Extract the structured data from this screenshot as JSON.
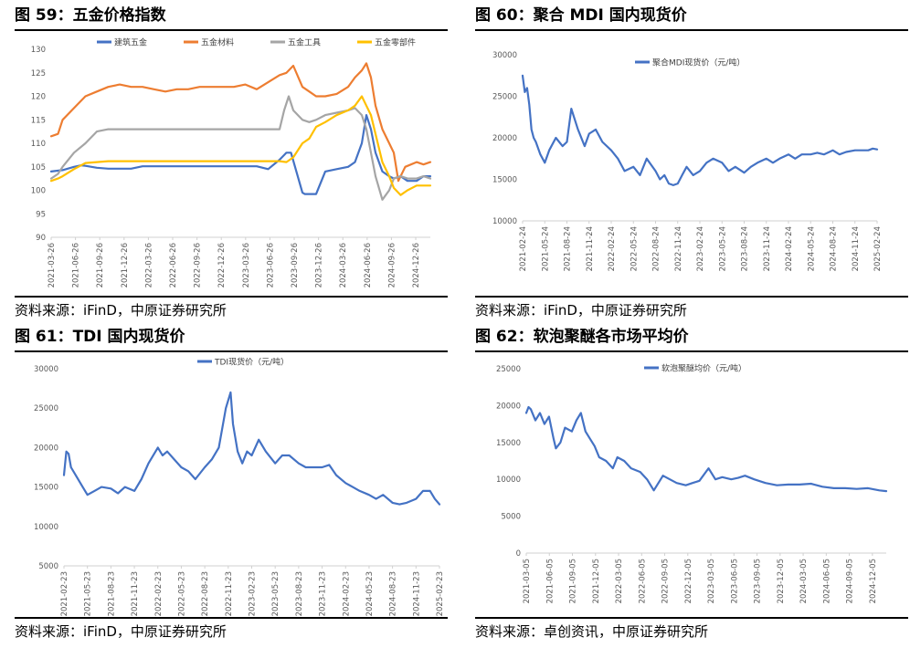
{
  "panels": [
    {
      "title": "图 59：五金价格指数",
      "source": "资料来源：iFinD，中原证券研究所"
    },
    {
      "title": "图 60：聚合 MDI 国内现货价",
      "source": "资料来源：iFinD，中原证券研究所"
    },
    {
      "title": "图 61：TDI 国内现货价",
      "source": "资料来源：iFinD，中原证券研究所"
    },
    {
      "title": "图 62：软泡聚醚各市场平均价",
      "source": "资料来源：卓创资讯，中原证券研究所"
    }
  ],
  "chart_data": [
    {
      "type": "line",
      "ylim": [
        90,
        130
      ],
      "yticks": [
        90,
        95,
        100,
        105,
        110,
        115,
        120,
        125,
        130
      ],
      "x_tick_labels": [
        "2021-03-26",
        "2021-06-26",
        "2021-09-26",
        "2021-12-26",
        "2022-03-26",
        "2022-06-26",
        "2022-09-26",
        "2022-12-26",
        "2023-03-26",
        "2023-06-26",
        "2023-09-26",
        "2023-12-26",
        "2024-03-26",
        "2024-06-26",
        "2024-09-26",
        "2024-12-26"
      ],
      "x_range": [
        0,
        16.6
      ],
      "legend_position": "top",
      "grid": false,
      "series": [
        {
          "name": "建筑五金",
          "color": "#4472C4",
          "x": [
            0,
            0.5,
            1,
            1.3,
            1.5,
            2,
            2.5,
            3,
            3.5,
            4,
            4.5,
            5,
            5.5,
            6,
            6.5,
            7,
            7.5,
            8,
            8.5,
            9,
            9.5,
            10,
            10.2,
            10.3,
            10.5,
            11,
            11.1,
            11.3,
            11.6,
            12,
            12.5,
            13,
            13.3,
            13.6,
            13.8,
            14,
            14.2,
            14.5,
            14.8,
            15,
            15.3,
            15.6,
            16,
            16.3,
            16.6
          ],
          "y": [
            104,
            104.3,
            105,
            105.3,
            105.2,
            104.8,
            104.6,
            104.6,
            104.6,
            105.1,
            105.1,
            105.1,
            105.1,
            105.1,
            105.1,
            105.1,
            105.1,
            105.1,
            105.1,
            105.1,
            104.5,
            106.5,
            107.5,
            108,
            108,
            99.5,
            99.2,
            99.2,
            99.2,
            104,
            104.5,
            105,
            106,
            110,
            116,
            113,
            108,
            104,
            103,
            102.5,
            103,
            102,
            102,
            103,
            103
          ]
        },
        {
          "name": "五金材料",
          "color": "#ED7D31",
          "x": [
            0,
            0.3,
            0.5,
            1,
            1.5,
            2,
            2.5,
            3,
            3.5,
            4,
            4.5,
            5,
            5.5,
            6,
            6.5,
            7,
            7.5,
            8,
            8.5,
            9,
            9.5,
            10,
            10.3,
            10.6,
            11,
            11.3,
            11.6,
            12,
            12.5,
            13,
            13.3,
            13.6,
            13.8,
            14,
            14.2,
            14.5,
            14.8,
            15,
            15.2,
            15.5,
            16,
            16.3,
            16.6
          ],
          "y": [
            111.5,
            112,
            115,
            117.5,
            120,
            121,
            122,
            122.5,
            122,
            122,
            121.5,
            121,
            121.5,
            121.5,
            122,
            122,
            122,
            122,
            122.5,
            121.5,
            123,
            124.5,
            125,
            126.5,
            122,
            121,
            120,
            120,
            120.5,
            122,
            124,
            125.5,
            127,
            124,
            118,
            113,
            110,
            108,
            102,
            105,
            106,
            105.5,
            106
          ]
        },
        {
          "name": "五金工具",
          "color": "#A5A5A5",
          "x": [
            0,
            0.3,
            0.5,
            1,
            1.5,
            2,
            2.5,
            3,
            3.5,
            4,
            4.5,
            5,
            5.5,
            6,
            6.5,
            7,
            7.5,
            8,
            8.5,
            9,
            9.5,
            10,
            10.2,
            10.4,
            10.6,
            11,
            11.3,
            11.6,
            12,
            12.5,
            13,
            13.3,
            13.6,
            13.8,
            14,
            14.2,
            14.5,
            14.8,
            15,
            15.3,
            15.6,
            16,
            16.3,
            16.6
          ],
          "y": [
            102.5,
            103.5,
            105,
            108,
            110,
            112.5,
            113,
            113,
            113,
            113,
            113,
            113,
            113,
            113,
            113,
            113,
            113,
            113,
            113,
            113,
            113,
            113,
            117,
            120,
            117,
            115,
            114.5,
            115,
            116,
            116.5,
            117,
            117.5,
            116,
            113,
            108,
            103,
            98,
            100,
            102.5,
            103,
            102.5,
            102.5,
            103,
            102.5
          ]
        },
        {
          "name": "五金零部件",
          "color": "#FFC000",
          "x": [
            0,
            0.3,
            0.5,
            1,
            1.5,
            2,
            2.5,
            3,
            3.5,
            4,
            4.5,
            5,
            5.5,
            6,
            6.5,
            7,
            7.5,
            8,
            8.5,
            9,
            9.5,
            10,
            10.3,
            10.6,
            11,
            11.3,
            11.6,
            12,
            12.5,
            13,
            13.3,
            13.6,
            13.8,
            14,
            14.2,
            14.5,
            14.8,
            15,
            15.3,
            15.6,
            16,
            16.3,
            16.6
          ],
          "y": [
            102,
            102.5,
            103,
            104.5,
            105.8,
            106,
            106.2,
            106.2,
            106.2,
            106.2,
            106.2,
            106.2,
            106.2,
            106.2,
            106.2,
            106.2,
            106.2,
            106.2,
            106.2,
            106.2,
            106.2,
            106.2,
            106,
            107,
            110,
            111,
            113.5,
            114.5,
            116,
            117,
            118,
            120,
            118,
            116,
            112,
            106,
            103,
            100.5,
            99,
            100,
            101,
            101,
            101
          ]
        }
      ]
    },
    {
      "type": "line",
      "ylim": [
        10000,
        30000
      ],
      "yticks": [
        10000,
        15000,
        20000,
        25000,
        30000
      ],
      "x_tick_labels": [
        "2021-02-24",
        "2021-05-24",
        "2021-08-24",
        "2021-11-24",
        "2022-02-24",
        "2022-05-24",
        "2022-08-24",
        "2022-11-24",
        "2023-02-24",
        "2023-05-24",
        "2023-08-24",
        "2023-11-24",
        "2024-02-24",
        "2024-05-24",
        "2024-08-24",
        "2024-11-24",
        "2025-02-24"
      ],
      "x_range": [
        0,
        16
      ],
      "legend_position": "top",
      "grid": false,
      "series": [
        {
          "name": "聚合MDI现货价（元/吨）",
          "color": "#4472C4",
          "x": [
            0,
            0.1,
            0.2,
            0.3,
            0.4,
            0.5,
            0.6,
            0.8,
            1,
            1.2,
            1.5,
            1.8,
            2,
            2.2,
            2.5,
            2.8,
            3,
            3.3,
            3.6,
            4,
            4.3,
            4.6,
            5,
            5.3,
            5.6,
            6,
            6.2,
            6.4,
            6.6,
            6.8,
            7,
            7.2,
            7.4,
            7.7,
            8,
            8.3,
            8.6,
            9,
            9.3,
            9.6,
            10,
            10.3,
            10.6,
            11,
            11.3,
            11.6,
            12,
            12.3,
            12.6,
            13,
            13.3,
            13.6,
            14,
            14.3,
            14.6,
            15,
            15.3,
            15.6,
            15.8,
            16
          ],
          "y": [
            27500,
            25500,
            26000,
            24000,
            21000,
            20000,
            19500,
            18000,
            17000,
            18500,
            20000,
            19000,
            19500,
            23500,
            21000,
            19000,
            20500,
            21000,
            19500,
            18500,
            17500,
            16000,
            16500,
            15500,
            17500,
            16000,
            15000,
            15500,
            14500,
            14300,
            14500,
            15500,
            16500,
            15500,
            16000,
            17000,
            17500,
            17000,
            16000,
            16500,
            15800,
            16500,
            17000,
            17500,
            17000,
            17500,
            18000,
            17500,
            18000,
            18000,
            18200,
            18000,
            18500,
            18000,
            18300,
            18500,
            18500,
            18500,
            18700,
            18600
          ]
        }
      ]
    },
    {
      "type": "line",
      "ylim": [
        5000,
        30000
      ],
      "yticks": [
        5000,
        10000,
        15000,
        20000,
        25000,
        30000
      ],
      "x_tick_labels": [
        "2021-02-23",
        "2021-05-23",
        "2021-08-23",
        "2021-11-23",
        "2022-02-23",
        "2022-05-23",
        "2022-08-23",
        "2022-11-23",
        "2023-02-23",
        "2023-05-23",
        "2023-08-23",
        "2023-11-23",
        "2024-02-23",
        "2024-05-23",
        "2024-08-23",
        "2024-11-23",
        "2025-02-23"
      ],
      "x_range": [
        0,
        16
      ],
      "legend_position": "top",
      "grid": false,
      "series": [
        {
          "name": "TDI现货价（元/吨）",
          "color": "#4472C4",
          "x": [
            0,
            0.1,
            0.2,
            0.3,
            0.5,
            0.8,
            1,
            1.3,
            1.6,
            2,
            2.3,
            2.6,
            3,
            3.3,
            3.6,
            4,
            4.2,
            4.4,
            4.7,
            5,
            5.3,
            5.6,
            6,
            6.3,
            6.6,
            6.9,
            7.1,
            7.2,
            7.4,
            7.6,
            7.8,
            8,
            8.3,
            8.6,
            9,
            9.3,
            9.6,
            10,
            10.3,
            10.6,
            11,
            11.3,
            11.6,
            12,
            12.3,
            12.6,
            13,
            13.3,
            13.6,
            14,
            14.3,
            14.6,
            15,
            15.3,
            15.6,
            15.8,
            16
          ],
          "y": [
            16500,
            19500,
            19200,
            17500,
            16500,
            15000,
            14000,
            14500,
            15000,
            14800,
            14200,
            15000,
            14500,
            16000,
            18000,
            20000,
            19000,
            19500,
            18500,
            17500,
            17000,
            16000,
            17500,
            18500,
            20000,
            25000,
            27000,
            23000,
            19500,
            18000,
            19500,
            19000,
            21000,
            19500,
            18000,
            19000,
            19000,
            18000,
            17500,
            17500,
            17500,
            17800,
            16500,
            15500,
            15000,
            14500,
            14000,
            13500,
            14000,
            13000,
            12800,
            13000,
            13500,
            14500,
            14500,
            13500,
            12800
          ]
        }
      ]
    },
    {
      "type": "line",
      "ylim": [
        0,
        25000
      ],
      "yticks": [
        0,
        5000,
        10000,
        15000,
        20000,
        25000
      ],
      "x_tick_labels": [
        "2021-03-05",
        "2021-06-05",
        "2021-09-05",
        "2021-12-05",
        "2022-03-05",
        "2022-06-05",
        "2022-09-05",
        "2022-12-05",
        "2023-03-05",
        "2023-06-05",
        "2023-09-05",
        "2023-12-05",
        "2024-03-05",
        "2024-06-05",
        "2024-09-05",
        "2024-12-05"
      ],
      "x_range": [
        0,
        15.8
      ],
      "legend_position": "top",
      "grid": false,
      "series": [
        {
          "name": "软泡聚醚均价（元/吨）",
          "color": "#4472C4",
          "x": [
            0,
            0.1,
            0.2,
            0.4,
            0.6,
            0.8,
            1,
            1.2,
            1.3,
            1.5,
            1.7,
            2,
            2.2,
            2.4,
            2.6,
            2.8,
            3,
            3.2,
            3.5,
            3.8,
            4,
            4.3,
            4.6,
            5,
            5.3,
            5.6,
            6,
            6.3,
            6.6,
            7,
            7.3,
            7.6,
            8,
            8.3,
            8.6,
            9,
            9.3,
            9.6,
            10,
            10.5,
            11,
            11.5,
            12,
            12.5,
            13,
            13.5,
            14,
            14.5,
            15,
            15.5,
            15.8
          ],
          "y": [
            19000,
            19800,
            19500,
            18000,
            19000,
            17500,
            18500,
            15500,
            14200,
            15000,
            17000,
            16500,
            18000,
            19000,
            16500,
            15500,
            14500,
            13000,
            12500,
            11500,
            13000,
            12500,
            11500,
            11000,
            10000,
            8500,
            10500,
            10000,
            9500,
            9200,
            9500,
            9800,
            11500,
            10000,
            10300,
            10000,
            10200,
            10500,
            10000,
            9500,
            9200,
            9300,
            9300,
            9400,
            9000,
            8800,
            8800,
            8700,
            8800,
            8500,
            8400
          ]
        }
      ]
    }
  ]
}
